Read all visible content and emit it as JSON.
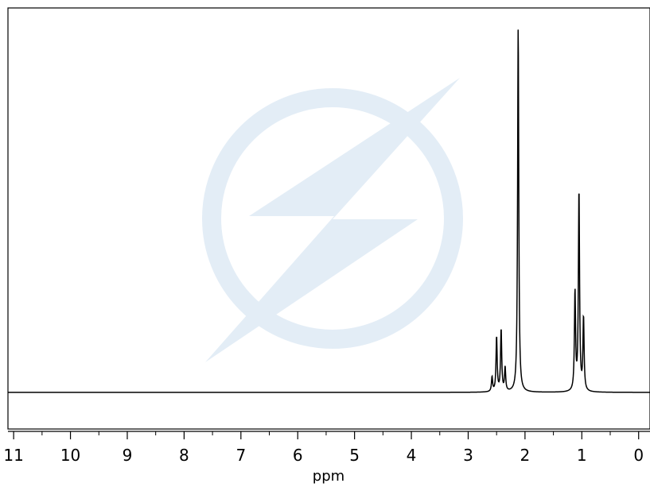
{
  "chart_data": {
    "type": "line",
    "xlabel": "ppm",
    "xlim": [
      11.1,
      -0.2
    ],
    "x_reversed": true,
    "ylim": [
      -0.1,
      1.05
    ],
    "grid": false,
    "legend": "none",
    "ticks": {
      "major": [
        11,
        10,
        9,
        8,
        7,
        6,
        5,
        4,
        3,
        2,
        1,
        0
      ],
      "labels": [
        "11",
        "10",
        "9",
        "8",
        "7",
        "6",
        "5",
        "4",
        "3",
        "2",
        "1",
        "0"
      ],
      "minor_step": 0.5
    },
    "peaks": [
      {
        "shift": 2.58,
        "height": 0.04
      },
      {
        "shift": 2.5,
        "height": 0.15
      },
      {
        "shift": 2.42,
        "height": 0.17
      },
      {
        "shift": 2.35,
        "height": 0.065
      },
      {
        "shift": 2.12,
        "height": 1.0
      },
      {
        "shift": 1.12,
        "height": 0.27
      },
      {
        "shift": 1.05,
        "height": 0.55
      },
      {
        "shift": 0.97,
        "height": 0.2
      }
    ],
    "line_color": "#000000",
    "watermark_color": "#e3edf6"
  }
}
